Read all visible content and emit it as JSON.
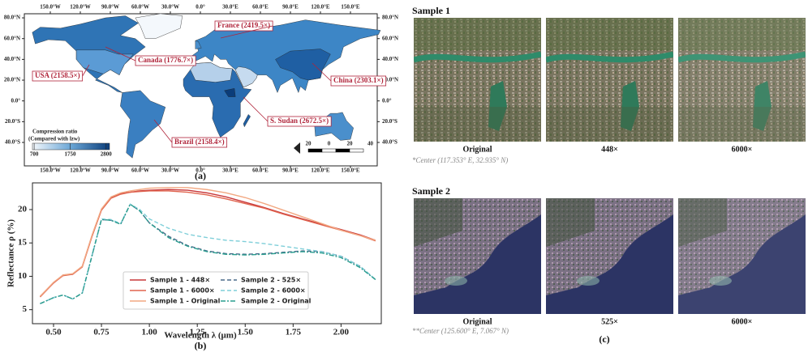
{
  "map": {
    "panel_label": "(a)",
    "lon_ticks": [
      {
        "value": -150,
        "label": "150.0°W"
      },
      {
        "value": -120,
        "label": "120.0°W"
      },
      {
        "value": -90,
        "label": "90.0°W"
      },
      {
        "value": -60,
        "label": "60.0°W"
      },
      {
        "value": -30,
        "label": "30.0°W"
      },
      {
        "value": 0,
        "label": "0.0°"
      },
      {
        "value": 30,
        "label": "30.0°E"
      },
      {
        "value": 60,
        "label": "60.0°E"
      },
      {
        "value": 90,
        "label": "90.0°E"
      },
      {
        "value": 120,
        "label": "120.0°E"
      },
      {
        "value": 150,
        "label": "150.0°E"
      }
    ],
    "lat_ticks": [
      {
        "value": 80,
        "label": "80.0°N"
      },
      {
        "value": 60,
        "label": "60.0°N"
      },
      {
        "value": 40,
        "label": "40.0°N"
      },
      {
        "value": 20,
        "label": "20.0°N"
      },
      {
        "value": 0,
        "label": "0.0°"
      },
      {
        "value": -20,
        "label": "20.0°S"
      },
      {
        "value": -40,
        "label": "40.0°S"
      }
    ],
    "annotations": [
      "France (2419.5×)",
      "Canada (1776.7×)",
      "USA (2158.5×)",
      "China (2303.1×)",
      "S. Sudan (2672.5×)",
      "Brazil (2158.4×)"
    ],
    "colorbar": {
      "title": "Compression ratio",
      "subtitle": "(Compared with lzw)",
      "ticks": [
        700,
        1750,
        2800
      ],
      "clim": [
        650,
        2900
      ]
    },
    "scale_bar": [
      20,
      0,
      20,
      40
    ]
  },
  "chart_data": {
    "type": "line",
    "panel_label": "(b)",
    "x_label": "Wavelength λ (μm)",
    "y_label": "Reflectance ρ (%)",
    "x": [
      0.43,
      0.5,
      0.55,
      0.6,
      0.65,
      0.7,
      0.75,
      0.8,
      0.85,
      0.9,
      0.95,
      1.0,
      1.1,
      1.2,
      1.3,
      1.4,
      1.5,
      1.6,
      1.7,
      1.8,
      1.9,
      2.0,
      2.1,
      2.18
    ],
    "series": [
      {
        "name": "Sample 1 - 448×",
        "color": "#c8383a",
        "dash": "none",
        "values": [
          7.0,
          9.0,
          10.2,
          10.3,
          11.5,
          16.0,
          20.0,
          21.8,
          22.4,
          22.6,
          22.8,
          22.9,
          23.0,
          22.9,
          22.5,
          21.9,
          21.1,
          20.3,
          19.4,
          18.6,
          17.8,
          17.0,
          16.2,
          15.4
        ]
      },
      {
        "name": "Sample 1 - 6000×",
        "color": "#e0644e",
        "dash": "none",
        "values": [
          6.9,
          9.0,
          10.1,
          10.3,
          11.4,
          15.9,
          19.9,
          21.7,
          22.3,
          22.6,
          22.7,
          22.8,
          22.8,
          22.6,
          22.2,
          21.6,
          20.9,
          20.2,
          19.3,
          18.5,
          17.7,
          16.9,
          16.1,
          15.3
        ]
      },
      {
        "name": "Sample 1 - Original",
        "color": "#f2a882",
        "dash": "none",
        "values": [
          7.0,
          9.1,
          10.2,
          10.4,
          11.5,
          16.1,
          20.1,
          21.9,
          22.5,
          22.8,
          23.0,
          23.2,
          23.3,
          23.3,
          23.0,
          22.5,
          21.8,
          20.9,
          19.9,
          18.9,
          17.9,
          16.9,
          16.1,
          15.4
        ]
      },
      {
        "name": "Sample 2 - 525×",
        "color": "#4a6a8a",
        "dash": "5 3",
        "values": [
          5.9,
          6.8,
          7.2,
          6.6,
          7.5,
          13.0,
          18.5,
          18.4,
          17.8,
          20.8,
          19.8,
          18.0,
          16.0,
          14.6,
          13.8,
          13.4,
          13.3,
          13.4,
          13.6,
          13.8,
          13.7,
          13.0,
          11.5,
          9.5
        ]
      },
      {
        "name": "Sample 2 - 6000×",
        "color": "#7fcfd9",
        "dash": "5 3",
        "values": [
          5.9,
          6.8,
          7.2,
          6.6,
          7.5,
          13.1,
          18.6,
          18.5,
          17.9,
          20.8,
          20.0,
          18.6,
          17.2,
          16.3,
          15.8,
          15.4,
          15.2,
          14.9,
          14.5,
          14.1,
          13.7,
          13.0,
          11.5,
          9.5
        ]
      },
      {
        "name": "Sample 2 - Original",
        "color": "#2a9d8f",
        "dash": "6 2 2 2",
        "values": [
          5.9,
          6.8,
          7.2,
          6.6,
          7.5,
          13.0,
          18.5,
          18.4,
          17.8,
          20.8,
          19.8,
          18.0,
          15.8,
          14.5,
          13.7,
          13.3,
          13.2,
          13.3,
          13.5,
          13.7,
          13.5,
          12.8,
          11.3,
          9.5
        ]
      }
    ],
    "xlim": [
      0.39,
      2.21
    ],
    "ylim": [
      2.9,
      24.0
    ],
    "xticks": [
      {
        "value": 0.5,
        "label": "0.50"
      },
      0.75,
      {
        "value": 1.0,
        "label": "1.00"
      },
      1.25,
      {
        "value": 1.5,
        "label": "1.50"
      },
      1.75,
      {
        "value": 2.0,
        "label": "2.00"
      }
    ],
    "yticks": [
      5,
      10,
      15,
      20
    ],
    "grid": false
  },
  "samples": {
    "panel_label": "(c)",
    "items": [
      {
        "title": "Sample 1",
        "captions": [
          "Original",
          "448×",
          "6000×"
        ],
        "note": "*Center (117.353° E, 32.935° N)"
      },
      {
        "title": "Sample 2",
        "captions": [
          "Original",
          "525×",
          "6000×"
        ],
        "note": "**Center (125.600° E, 7.067° N)"
      }
    ]
  }
}
